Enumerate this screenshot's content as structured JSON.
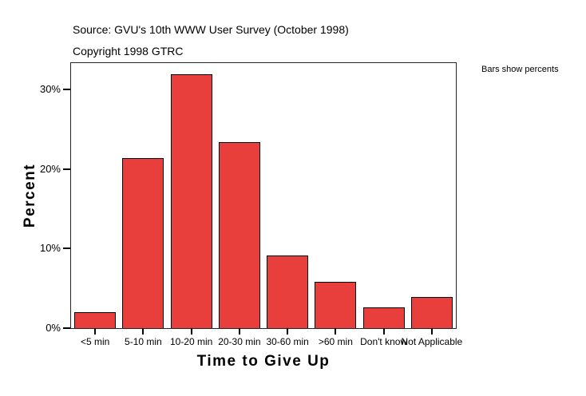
{
  "header": {
    "source": "Source: GVU's 10th WWW User Survey (October 1998)",
    "copyright": "Copyright 1998 GTRC"
  },
  "note": "Bars show percents",
  "chart_data": {
    "type": "bar",
    "title": "",
    "categories": [
      "<5 min",
      "5-10 min",
      "10-20 min",
      "20-30 min",
      "30-60 min",
      ">60 min",
      "Don't know",
      "Not Applicable"
    ],
    "values": [
      2.0,
      21.4,
      31.9,
      23.4,
      9.1,
      5.8,
      2.6,
      3.9
    ],
    "xlabel": "Time to Give Up",
    "ylabel": "Percent",
    "yticks": [
      0,
      10,
      20,
      30
    ],
    "ytick_labels": [
      "0%",
      "10%",
      "20%",
      "30%"
    ],
    "ylim": [
      0,
      33.3
    ],
    "grid": false,
    "legend_position": "none",
    "bar_color": "#e83f3d",
    "bar_border_color": "#000000",
    "frame_color": "#262626"
  }
}
